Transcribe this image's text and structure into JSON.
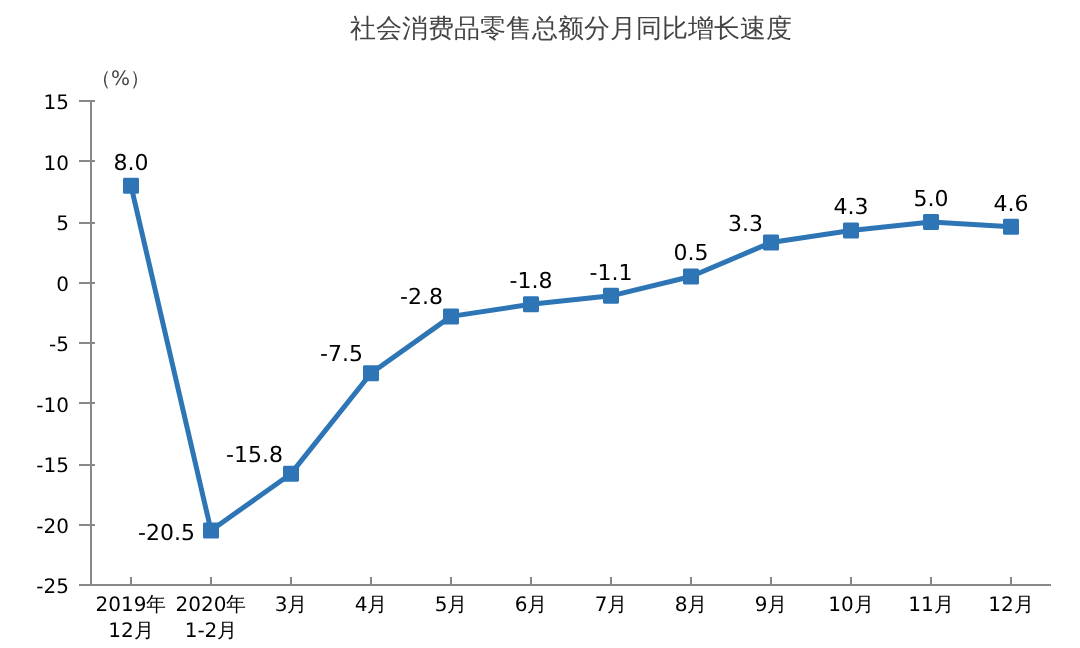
{
  "chart_data": {
    "type": "line",
    "title": "社会消费品零售总额分月同比增长速度",
    "ylabel": "（%）",
    "categories": [
      "2019年\n12月",
      "2020年\n1-2月",
      "3月",
      "4月",
      "5月",
      "6月",
      "7月",
      "8月",
      "9月",
      "10月",
      "11月",
      "12月"
    ],
    "series": [
      {
        "color": "#2e75b6",
        "values": [
          8.0,
          -20.5,
          -15.8,
          -7.5,
          -2.8,
          -1.8,
          -1.1,
          0.5,
          3.3,
          4.3,
          5.0,
          4.6
        ],
        "value_labels": [
          "8.0",
          "-20.5",
          "-15.8",
          "-7.5",
          "-2.8",
          "-1.8",
          "-1.1",
          "0.5",
          "3.3",
          "4.3",
          "5.0",
          "4.6"
        ]
      }
    ],
    "ylim": [
      -25,
      15
    ],
    "yticks": [
      -25,
      -20,
      -15,
      -10,
      -5,
      0,
      5,
      10,
      15
    ],
    "marker": "square",
    "grid": false
  }
}
